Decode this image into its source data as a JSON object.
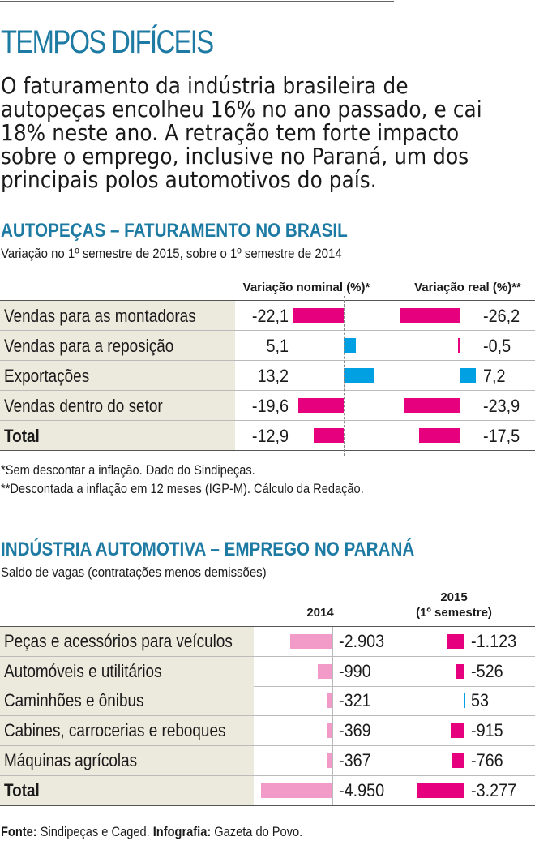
{
  "header": {
    "title": "TEMPOS DIFÍCEIS",
    "lead": "O faturamento da indústria brasileira de autopeças encolheu 16% no ano passado, e cai 18% neste ano. A retração tem forte impacto sobre o emprego, inclusive no Paraná, um dos principais polos automotivos do país."
  },
  "colors": {
    "accent": "#1d7aa3",
    "negative": "#e6007e",
    "positive": "#00a0e3",
    "negative_light": "#f29bc8",
    "row_bg": "#ece9dd"
  },
  "chart_data": [
    {
      "type": "bar",
      "title": "AUTOPEÇAS – FATURAMENTO NO BRASIL",
      "subtitle": "Variação no 1º semestre de 2015, sobre o 1º semestre de 2014",
      "categories": [
        "Vendas para as montadoras",
        "Vendas para a reposição",
        "Exportações",
        "Vendas dentro do setor",
        "Total"
      ],
      "series": [
        {
          "name": "Variação nominal (%)*",
          "values": [
            -22.1,
            5.1,
            13.2,
            -19.6,
            -12.9
          ]
        },
        {
          "name": "Variação real (%)**",
          "values": [
            -26.2,
            -0.5,
            7.2,
            -23.9,
            -17.5
          ]
        }
      ],
      "value_labels": [
        [
          "-22,1",
          "5,1",
          "13,2",
          "-19,6",
          "-12,9"
        ],
        [
          "-26,2",
          "-0,5",
          "7,2",
          "-23,9",
          "-17,5"
        ]
      ],
      "notes": [
        "*Sem descontar a inflação. Dado do Sindipeças.",
        "**Descontada a inflação em 12 meses (IGP-M). Cálculo da Redação."
      ]
    },
    {
      "type": "bar",
      "title": "INDÚSTRIA AUTOMOTIVA – EMPREGO NO PARANÁ",
      "subtitle": "Saldo de vagas (contratações menos demissões)",
      "categories": [
        "Peças e acessórios para veículos",
        "Automóveis e utilitários",
        "Caminhões e ônibus",
        "Cabines, carrocerias e reboques",
        "Máquinas agrícolas",
        "Total"
      ],
      "series": [
        {
          "name": "2014",
          "values": [
            -2903,
            -990,
            -321,
            -369,
            -367,
            -4950
          ]
        },
        {
          "name": "2015 (1º semestre)",
          "values": [
            -1123,
            -526,
            53,
            -915,
            -766,
            -3277
          ]
        }
      ],
      "value_labels": [
        [
          "-2.903",
          "-990",
          "-321",
          "-369",
          "-367",
          "-4.950"
        ],
        [
          "-1.123",
          "-526",
          "53",
          "-915",
          "-766",
          "-3.277"
        ]
      ],
      "header_lines": {
        "s2014": "2014",
        "s2015_a": "2015",
        "s2015_b": "(1º semestre)"
      }
    }
  ],
  "footer": {
    "source_label": "Fonte:",
    "source_text": " Sindipeças e Caged. ",
    "info_label": "Infografia:",
    "info_text": " Gazeta do Povo."
  }
}
